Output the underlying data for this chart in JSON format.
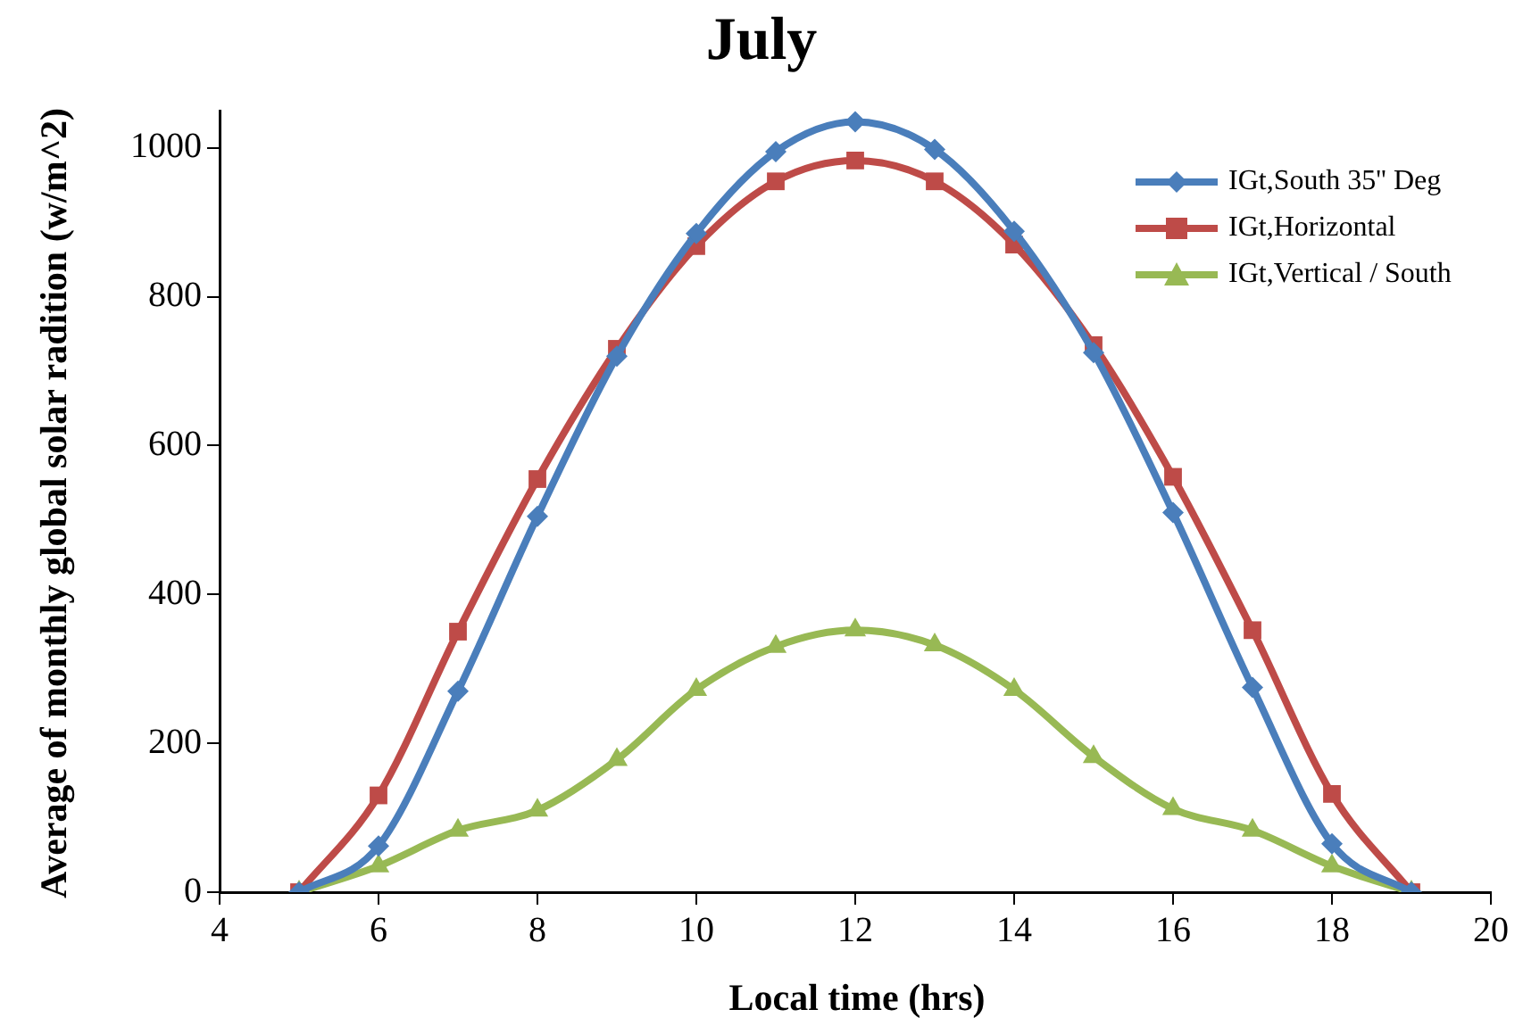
{
  "chart_data": {
    "type": "line",
    "title": "July",
    "xlabel": "Local time (hrs)",
    "ylabel": "Average of monthly global solar radition (w/m^2)",
    "x": [
      5,
      6,
      7,
      8,
      9,
      10,
      11,
      12,
      13,
      14,
      15,
      16,
      17,
      18,
      19
    ],
    "xlim": [
      4,
      20
    ],
    "xticks": [
      4,
      6,
      8,
      10,
      12,
      14,
      16,
      18,
      20
    ],
    "ylim": [
      0,
      1050
    ],
    "yticks": [
      0,
      200,
      400,
      600,
      800,
      1000
    ],
    "grid": false,
    "legend": "top right",
    "line_style": "solid",
    "series": [
      {
        "name": "IGt,South 35'' Deg",
        "color": "#4a7ebb",
        "marker": "diamond",
        "values": [
          0,
          62,
          270,
          505,
          720,
          885,
          995,
          1035,
          998,
          888,
          725,
          510,
          275,
          65,
          0
        ]
      },
      {
        "name": "IGt,Horizontal",
        "color": "#be4b48",
        "marker": "square",
        "values": [
          0,
          130,
          350,
          555,
          730,
          868,
          955,
          983,
          955,
          870,
          735,
          558,
          352,
          132,
          0
        ]
      },
      {
        "name": "IGt,Vertical / South",
        "color": "#98b954",
        "marker": "triangle",
        "values": [
          0,
          35,
          83,
          110,
          178,
          272,
          330,
          352,
          332,
          272,
          182,
          112,
          83,
          35,
          0
        ]
      }
    ]
  }
}
